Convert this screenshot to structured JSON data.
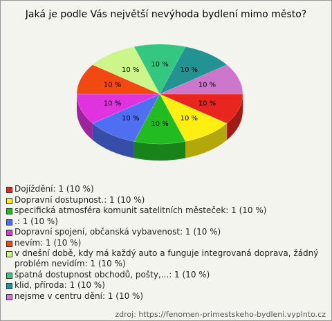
{
  "chart_data": {
    "type": "pie",
    "title": "Jaká je podle Vás největší nevýhoda bydlení mimo město?",
    "categories": [
      "Dojíždění: 1 (10 %)",
      "Dopravní dostupnost.: 1 (10 %)",
      "specifická atmosféra komunit satelitních městeček: 1 (10 %)",
      ".: 1 (10 %)",
      "Dopravní spojení, občanská vybavenost: 1 (10 %)",
      "nevím: 1 (10 %)",
      "v dnešní době, kdy má každý auto a funguje integrovaná doprava, žádný problém nevidím: 1 (10 %)",
      "špatná dostupnost obchodů, pošty,...: 1 (10 %)",
      "klid, příroda: 1 (10 %)",
      "nejsme v centru dění: 1 (10 %)"
    ],
    "values": [
      10,
      10,
      10,
      10,
      10,
      10,
      10,
      10,
      10,
      10
    ],
    "value_labels": [
      "10 %",
      "10 %",
      "10 %",
      "10 %",
      "10 %",
      "10 %",
      "10 %",
      "10 %",
      "10 %",
      "10 %"
    ],
    "colors": [
      "#e8251e",
      "#ffee11",
      "#22bb22",
      "#4f6ff0",
      "#e033e0",
      "#f04a12",
      "#ccf58a",
      "#33c77f",
      "#239292",
      "#cc77cc"
    ],
    "source": "zdroj: https://fenomen-primestskeho-bydleni.vyplnto.cz"
  }
}
